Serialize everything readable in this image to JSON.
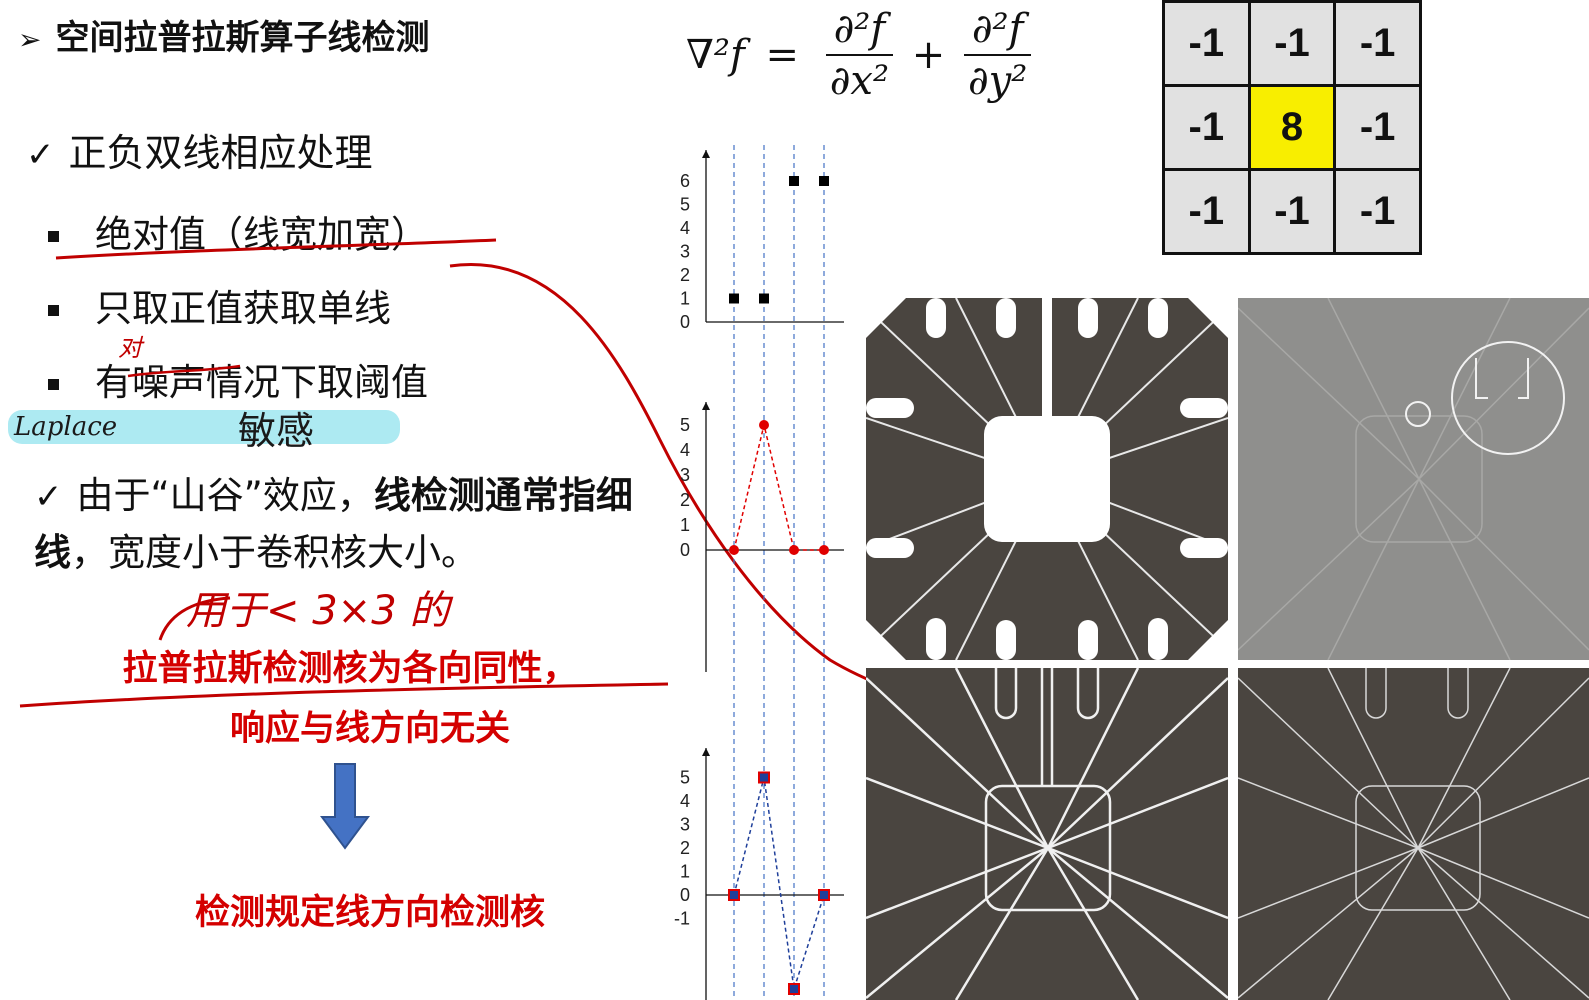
{
  "slide": {
    "title": "空间拉普拉斯算子线检测",
    "point1": "正负双线相应处理",
    "bullets": [
      "绝对值（线宽加宽）",
      "只取正值获取单线",
      "有噪声情况下取阈值"
    ],
    "point2_normal": "由于“山谷”效应，",
    "point2_bold1": "线检测通常指细线",
    "point2_rest": "，宽度小于卷积核大小。",
    "red_line1": "拉普拉斯检测核为各向同性，",
    "red_line2": "响应与线方向无关",
    "conclusion": "检测规定线方向检测核"
  },
  "annotations": {
    "note_dui": "对",
    "note_laplace": "Laplace",
    "note_minggan": "敏感",
    "note_yongyu": "用于< 3×3 的"
  },
  "formula": {
    "lhs": "∇²f",
    "eq": "=",
    "num1": "∂²f",
    "den1": "∂x²",
    "plus": "+",
    "num2": "∂²f",
    "den2": "∂y²"
  },
  "kernel": [
    "-1",
    "-1",
    "-1",
    "-1",
    "8",
    "-1",
    "-1",
    "-1",
    "-1"
  ],
  "colors": {
    "accent_red": "#d40000",
    "kernel_center": "#f8ee00",
    "arrow_blue": "#4472c4",
    "image_dark": "#4a4540"
  },
  "chart_data": [
    {
      "type": "scatter",
      "yticks": [
        "0",
        "1",
        "2",
        "3",
        "4",
        "5",
        "6"
      ],
      "x": [
        1,
        2,
        3,
        4
      ],
      "values": [
        1,
        1,
        6,
        6
      ],
      "ylim": [
        0,
        6.5
      ]
    },
    {
      "type": "line",
      "yticks": [
        "0",
        "1",
        "2",
        "3",
        "4",
        "5"
      ],
      "x": [
        1,
        2,
        3,
        4
      ],
      "values": [
        0,
        5,
        0,
        0
      ],
      "ylim": [
        -5,
        5.8
      ]
    },
    {
      "type": "line",
      "yticks": [
        "-1",
        "0",
        "1",
        "2",
        "3",
        "4",
        "5"
      ],
      "x": [
        1,
        2,
        3,
        4
      ],
      "values": [
        0,
        5,
        -4,
        0
      ],
      "ylim": [
        -3,
        5.8
      ]
    }
  ]
}
